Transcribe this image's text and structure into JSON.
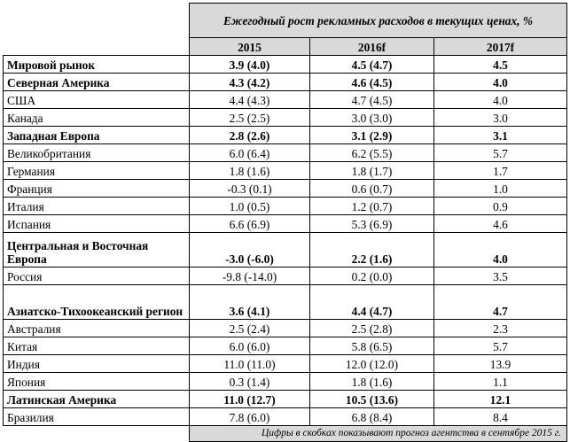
{
  "header": {
    "title": "Ежегодный рост рекламных расходов в текущих ценах, %",
    "years": [
      "2015",
      "2016f",
      "2017f"
    ]
  },
  "rows": [
    {
      "label": "Мировой рынок",
      "bold": true,
      "v": [
        "3.9 (4.0)",
        "4.5 (4.7)",
        "4.5"
      ]
    },
    {
      "label": "Северная Америка",
      "bold": true,
      "v": [
        "4.3 (4.2)",
        "4.6 (4.5)",
        "4.0"
      ]
    },
    {
      "label": "США",
      "bold": false,
      "v": [
        "4.4 (4.3)",
        "4.7 (4.5)",
        "4.0"
      ]
    },
    {
      "label": "Канада",
      "bold": false,
      "v": [
        "2.5 (2.5)",
        "3.0 (3.0)",
        "3.0"
      ]
    },
    {
      "label": "Западная Европа",
      "bold": true,
      "v": [
        "2.8 (2.6)",
        "3.1 (2.9)",
        "3.1"
      ]
    },
    {
      "label": "Великобритания",
      "bold": false,
      "v": [
        "6.0 (6.4)",
        "6.2 (5.5)",
        "5.7"
      ]
    },
    {
      "label": "Германия",
      "bold": false,
      "v": [
        "1.8 (1.6)",
        "1.8 (1.7)",
        "1.7"
      ]
    },
    {
      "label": "Франция",
      "bold": false,
      "v": [
        "-0.3 (0.1)",
        "0.6 (0.7)",
        "1.0"
      ]
    },
    {
      "label": "Италия",
      "bold": false,
      "v": [
        "1.0 (0.5)",
        "1.2 (0.7)",
        "0.9"
      ]
    },
    {
      "label": "Испания",
      "bold": false,
      "v": [
        "6.6 (6.9)",
        "5.3 (6.9)",
        "4.6"
      ]
    },
    {
      "label": "Центральная и Восточная Европа",
      "bold": true,
      "tall": true,
      "v": [
        "-3.0 (-6.0)",
        "2.2 (1.6)",
        "4.0"
      ]
    },
    {
      "label": "Россия",
      "bold": false,
      "v": [
        "-9.8 (-14.0)",
        "0.2 (0.0)",
        "3.5"
      ]
    },
    {
      "label": "Азиатско-Тихоокеанский регион",
      "bold": true,
      "tall": true,
      "v": [
        "3.6 (4.1)",
        "4.4 (4.7)",
        "4.7"
      ]
    },
    {
      "label": "Австралия",
      "bold": false,
      "v": [
        "2.5 (2.4)",
        "2.5 (2.8)",
        "2.3"
      ]
    },
    {
      "label": "Китая",
      "bold": false,
      "v": [
        "6.0 (6.0)",
        "5.8 (6.5)",
        "5.7"
      ]
    },
    {
      "label": "Индия",
      "bold": false,
      "v": [
        "11.0 (11.0)",
        "12.0 (12.0)",
        "13.9"
      ]
    },
    {
      "label": "Япония",
      "bold": false,
      "v": [
        "0.3 (1.4)",
        "1.8 (1.6)",
        "1.1"
      ]
    },
    {
      "label": "Латинская Америка",
      "bold": true,
      "v": [
        "11.0 (12.7)",
        "10.5 (13.6)",
        "12.1"
      ]
    },
    {
      "label": "Бразилия",
      "bold": false,
      "v": [
        "7.8 (6.0)",
        "6.8 (8.4)",
        "8.4"
      ]
    }
  ],
  "footnote": "Цифры в скобках показывают прогноз агентства в сентябре 2015 г."
}
